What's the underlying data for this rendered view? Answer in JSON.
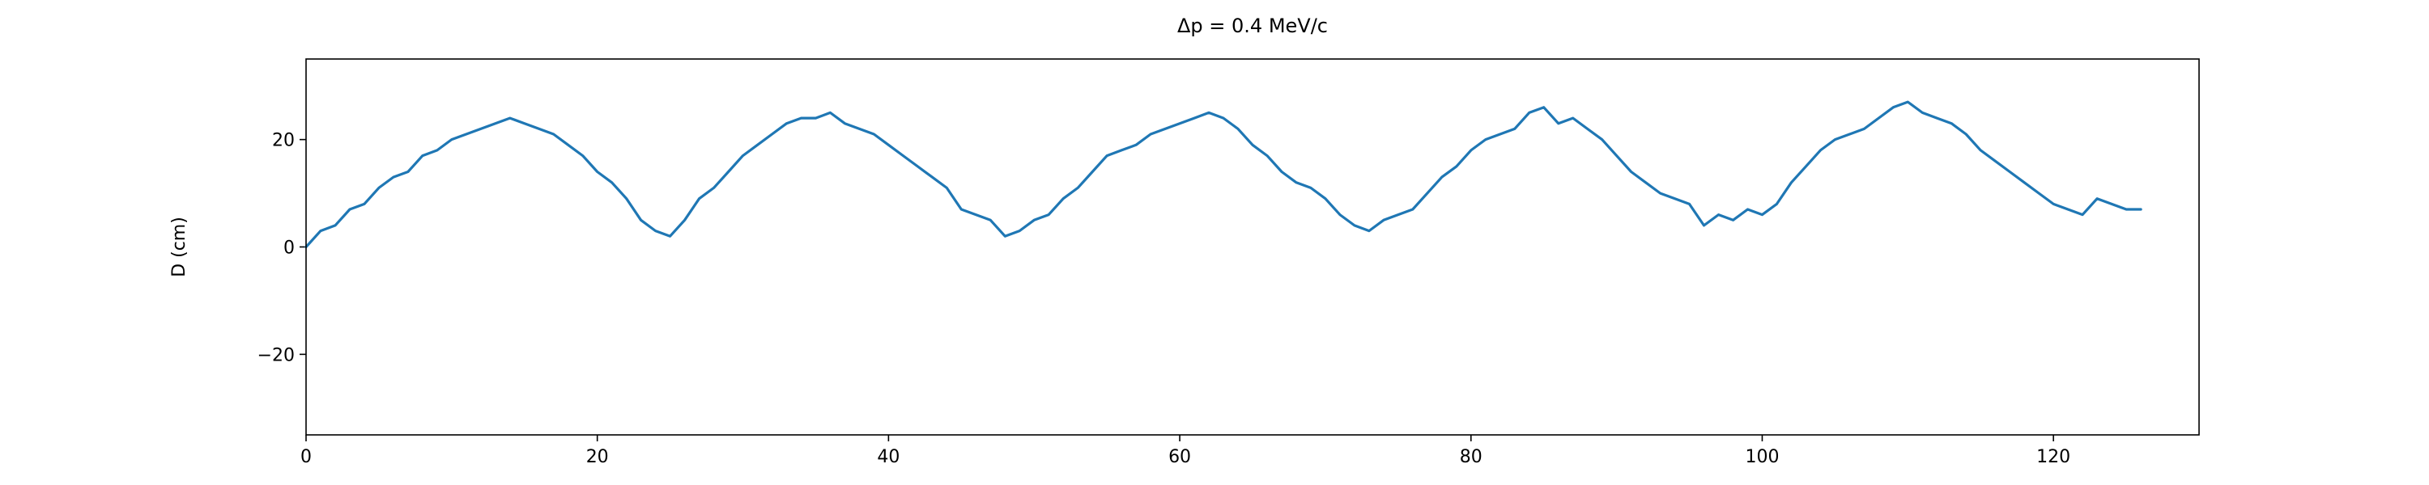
{
  "chart_data": {
    "type": "line",
    "title": "Δp = 0.4 MeV/c",
    "xlabel": "",
    "ylabel": "D (cm)",
    "xlim": [
      0,
      130
    ],
    "ylim": [
      -35,
      35
    ],
    "xticks": [
      0,
      20,
      40,
      60,
      80,
      100,
      120
    ],
    "yticks": [
      -20,
      0,
      20
    ],
    "xtick_labels": [
      "0",
      "20",
      "40",
      "60",
      "80",
      "100",
      "120"
    ],
    "ytick_labels": [
      "−20",
      "0",
      "20"
    ],
    "grid": false,
    "legend": "none",
    "series": [
      {
        "color": "#1f77b4",
        "x": [
          0,
          1,
          2,
          3,
          4,
          5,
          6,
          7,
          8,
          9,
          10,
          11,
          12,
          13,
          14,
          15,
          16,
          17,
          18,
          19,
          20,
          21,
          22,
          23,
          24,
          25,
          26,
          27,
          28,
          29,
          30,
          31,
          32,
          33,
          34,
          35,
          36,
          37,
          38,
          39,
          40,
          41,
          42,
          43,
          44,
          45,
          46,
          47,
          48,
          49,
          50,
          51,
          52,
          53,
          54,
          55,
          56,
          57,
          58,
          59,
          60,
          61,
          62,
          63,
          64,
          65,
          66,
          67,
          68,
          69,
          70,
          71,
          72,
          73,
          74,
          75,
          76,
          77,
          78,
          79,
          80,
          81,
          82,
          83,
          84,
          85,
          86,
          87,
          88,
          89,
          90,
          91,
          92,
          93,
          94,
          95,
          96,
          97,
          98,
          99,
          100,
          101,
          102,
          103,
          104,
          105,
          106,
          107,
          108,
          109,
          110,
          111,
          112,
          113,
          114,
          115,
          116,
          117,
          118,
          119,
          120,
          121,
          122,
          123,
          124,
          125,
          126
        ],
        "y": [
          0,
          3,
          4,
          7,
          8,
          11,
          13,
          14,
          17,
          18,
          20,
          21,
          22,
          23,
          24,
          23,
          22,
          21,
          19,
          17,
          14,
          12,
          9,
          5,
          3,
          2,
          5,
          9,
          11,
          14,
          17,
          19,
          21,
          23,
          24,
          24,
          25,
          23,
          22,
          21,
          19,
          17,
          15,
          13,
          11,
          7,
          6,
          5,
          2,
          3,
          5,
          6,
          9,
          11,
          14,
          17,
          18,
          19,
          21,
          22,
          23,
          24,
          25,
          24,
          22,
          19,
          17,
          14,
          12,
          11,
          9,
          6,
          4,
          3,
          5,
          6,
          7,
          10,
          13,
          15,
          18,
          20,
          21,
          22,
          25,
          26,
          23,
          24,
          22,
          20,
          17,
          14,
          12,
          10,
          9,
          8,
          4,
          6,
          5,
          7,
          6,
          8,
          12,
          15,
          18,
          20,
          21,
          22,
          24,
          26,
          27,
          25,
          24,
          23,
          21,
          18,
          16,
          14,
          12,
          10,
          8,
          7,
          6,
          9,
          8,
          7,
          7
        ]
      }
    ]
  }
}
